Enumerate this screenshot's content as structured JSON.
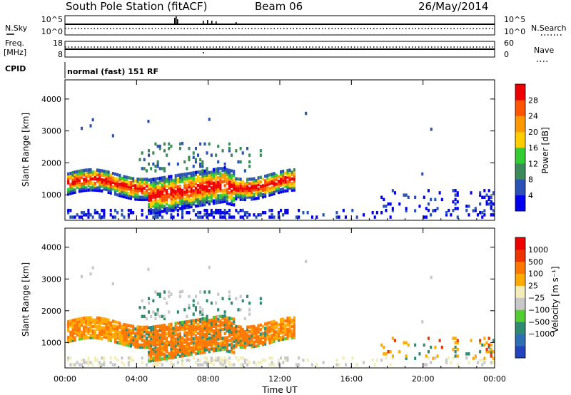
{
  "header": {
    "station": "South Pole Station (fitACF)",
    "beam": "Beam 06",
    "date": "26/May/2014"
  },
  "nsky_panel": {
    "left_label": "N.Sky",
    "right_label": "N.Search",
    "left_ticks": [
      "10^5",
      "10^0"
    ],
    "right_ticks": [
      "10^5",
      "10^0"
    ]
  },
  "freq_panel": {
    "left_label_1": "Freq.",
    "left_label_2": "[MHz]",
    "right_label": "Nave",
    "left_ticks": [
      "18",
      "8"
    ],
    "right_ticks": [
      "60",
      "0"
    ]
  },
  "cpid": {
    "label": "CPID",
    "text": "normal (fast) 151 RF"
  },
  "colors": {
    "power": [
      "#0000ee",
      "#2a52b4",
      "#3a8a5a",
      "#33cc33",
      "#ffcc00",
      "#ff9900",
      "#ff5500",
      "#ee0000"
    ],
    "velocity": [
      "#2244bb",
      "#2e6eb5",
      "#2f8a70",
      "#55cc33",
      "#c8c8c8",
      "#f2ecb8",
      "#ffaa00",
      "#ff7700",
      "#ee3300",
      "#ee0000"
    ]
  },
  "chart_data": [
    {
      "type": "heatmap",
      "panel": "power",
      "ylabel": "Slant Range [km]",
      "yticks": [
        1000,
        2000,
        3000,
        4000
      ],
      "ylim": [
        200,
        4600
      ],
      "xlim_hours": [
        0,
        24
      ],
      "xticks": [
        "00:00",
        "04:00",
        "08:00",
        "12:00",
        "16:00",
        "20:00",
        "00:00"
      ],
      "colorbar": {
        "label": "Power [dB]",
        "range": [
          0,
          32
        ],
        "ticks": [
          "4",
          "8",
          "12",
          "16",
          "20",
          "24",
          "28"
        ]
      }
    },
    {
      "type": "heatmap",
      "panel": "velocity",
      "ylabel": "Slant Range [km]",
      "yticks": [
        1000,
        2000,
        3000,
        4000
      ],
      "ylim": [
        200,
        4600
      ],
      "xlim_hours": [
        0,
        24
      ],
      "xticks": [
        "00:00",
        "04:00",
        "08:00",
        "12:00",
        "16:00",
        "20:00",
        "00:00"
      ],
      "xlabel": "Time UT",
      "colorbar": {
        "label": "Velocity [m s⁻¹]",
        "ticks": [
          "1000",
          "500",
          "100",
          "25",
          "−25",
          "−100",
          "−500",
          "−1000"
        ]
      }
    }
  ]
}
